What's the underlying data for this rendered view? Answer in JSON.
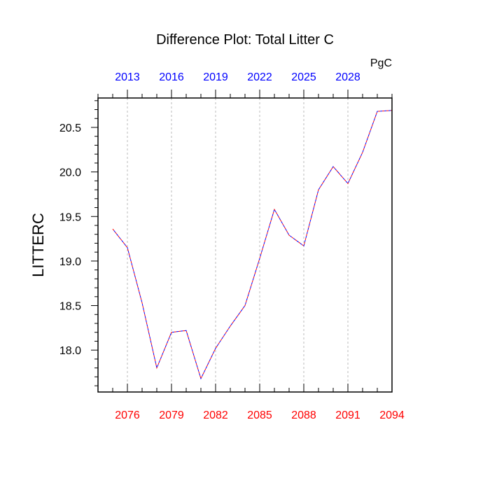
{
  "chart_data": {
    "type": "line",
    "title": "Difference Plot: Total Litter C",
    "units": "PgC",
    "ylabel": "LITTERC",
    "xlabel": "",
    "ylim": [
      17.53,
      20.83
    ],
    "grid": "vertical dashed lines at bottom-axis major ticks",
    "bottom_axis": {
      "color": "#ff0000",
      "range": [
        2074,
        2094
      ],
      "ticks": [
        2076,
        2079,
        2082,
        2085,
        2088,
        2091,
        2094
      ],
      "tick_labels": [
        "2076",
        "2079",
        "2082",
        "2085",
        "2088",
        "2091",
        "2094"
      ]
    },
    "top_axis": {
      "color": "#0000ff",
      "range": [
        2011,
        2031
      ],
      "ticks": [
        2013,
        2016,
        2019,
        2022,
        2025,
        2028
      ],
      "tick_labels": [
        "2013",
        "2016",
        "2019",
        "2022",
        "2025",
        "2028"
      ]
    },
    "y_ticks": [
      18.0,
      18.5,
      19.0,
      19.5,
      20.0,
      20.5
    ],
    "y_tick_labels": [
      "18.0",
      "18.5",
      "19.0",
      "19.5",
      "20.0",
      "20.5"
    ],
    "series": [
      {
        "color": "#ff0000",
        "dash": "dashed",
        "x": [
          2075,
          2076,
          2077,
          2078,
          2079,
          2080,
          2081,
          2082,
          2083,
          2084,
          2085,
          2086,
          2087,
          2088,
          2089,
          2090,
          2091,
          2092,
          2093,
          2094
        ],
        "values": [
          19.36,
          19.15,
          18.53,
          17.8,
          18.2,
          18.22,
          17.68,
          18.02,
          18.27,
          18.5,
          19.03,
          19.58,
          19.29,
          19.17,
          19.8,
          20.06,
          19.87,
          20.22,
          20.68,
          20.69
        ]
      },
      {
        "color": "#0000ff",
        "dash": "dashed",
        "x": [
          2012,
          2013,
          2014,
          2015,
          2016,
          2017,
          2018,
          2019,
          2020,
          2021,
          2022,
          2023,
          2024,
          2025,
          2026,
          2027,
          2028,
          2029,
          2030,
          2031
        ],
        "values": [
          19.36,
          19.15,
          18.53,
          17.8,
          18.2,
          18.22,
          17.68,
          18.02,
          18.27,
          18.5,
          19.03,
          19.58,
          19.29,
          19.17,
          19.8,
          20.06,
          19.87,
          20.22,
          20.68,
          20.69
        ]
      }
    ]
  }
}
